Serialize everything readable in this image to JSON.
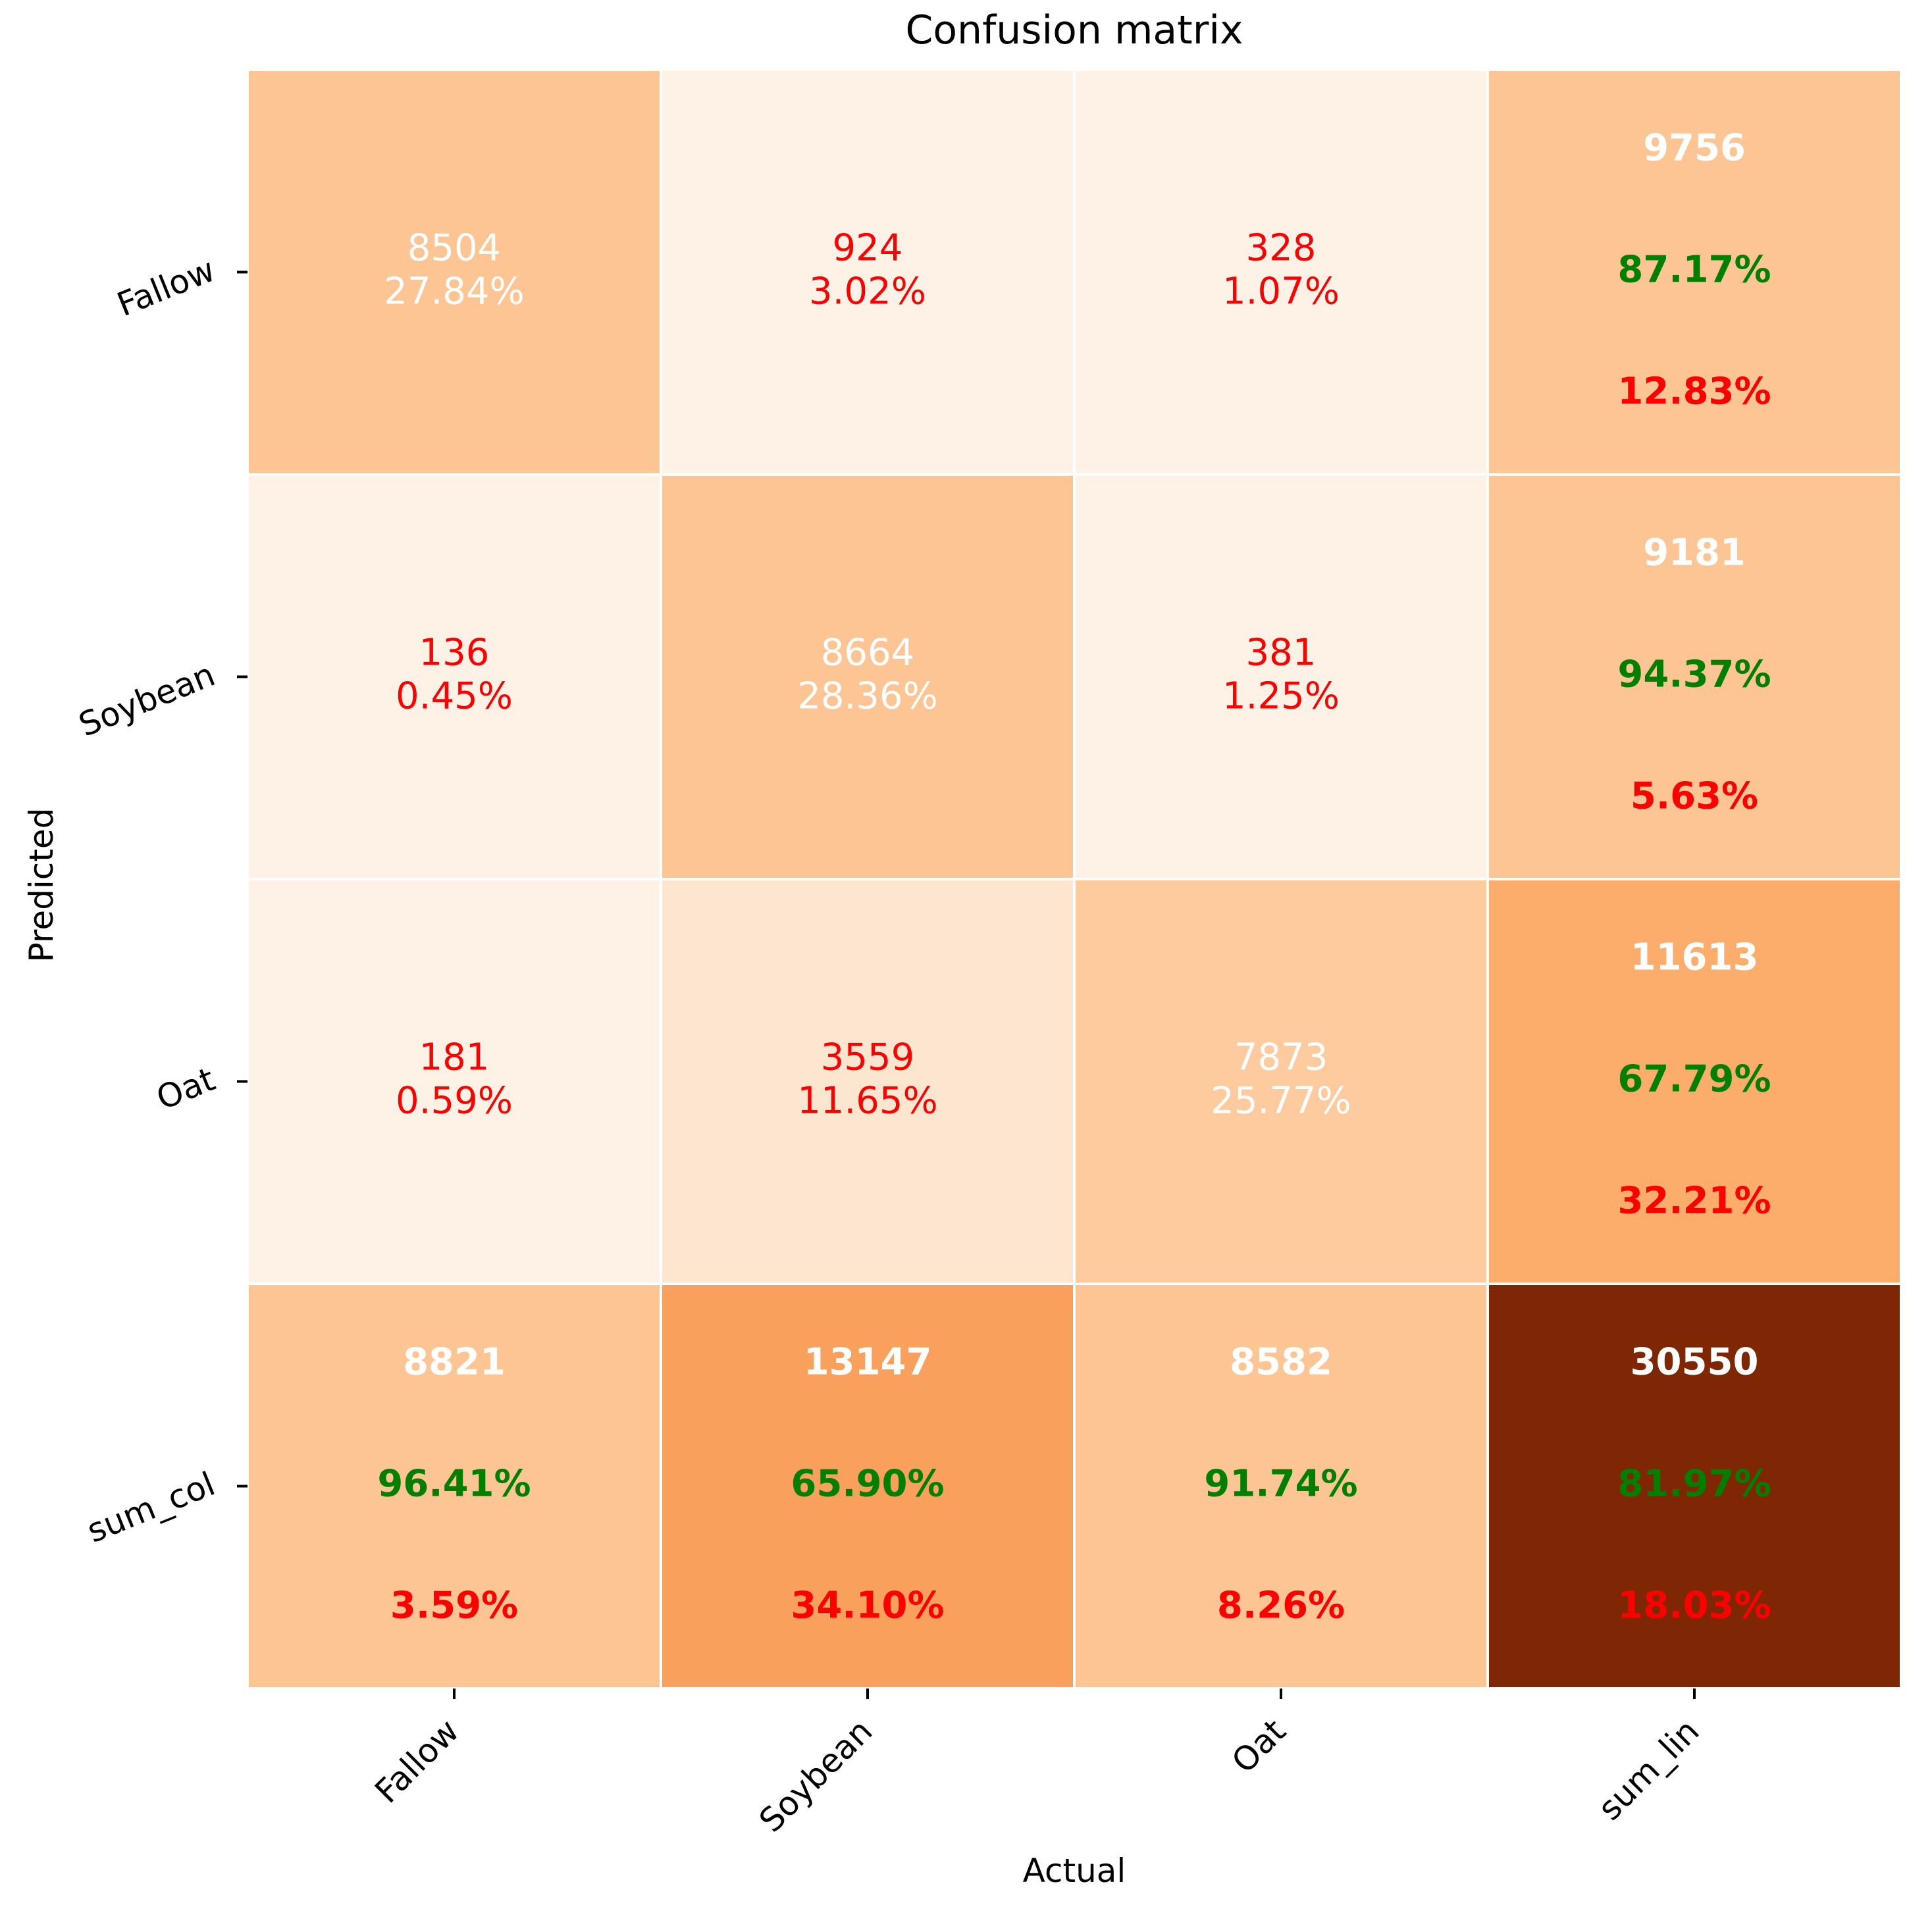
{
  "chart_data": {
    "type": "heatmap",
    "title": "Confusion matrix",
    "xlabel": "Actual",
    "ylabel": "Predicted",
    "x_tick_labels": [
      "Fallow",
      "Soybean",
      "Oat",
      "sum_lin"
    ],
    "y_tick_labels": [
      "Fallow",
      "Soybean",
      "Oat",
      "sum_col"
    ],
    "colormap": "Oranges",
    "colors": {
      "cell_very_light": "#fef2e6",
      "cell_light": "#fde6d0",
      "cell_medium_light": "#fdcb9e",
      "cell_peach": "#fdc494",
      "cell_orange_light": "#fcad6c",
      "cell_orange": "#f8a05c",
      "cell_dark": "#7f2704",
      "text_red": "#ff0000",
      "text_green": "#008000",
      "text_white": "#ffffff",
      "grid_line": "#ffffff"
    },
    "cells": [
      {
        "row": 0,
        "col": 0,
        "count": "8504",
        "percent": "27.84%",
        "kind": "diag",
        "fill": "#fdc494"
      },
      {
        "row": 0,
        "col": 1,
        "count": "924",
        "percent": "3.02%",
        "kind": "off",
        "fill": "#fef2e6"
      },
      {
        "row": 0,
        "col": 2,
        "count": "328",
        "percent": "1.07%",
        "kind": "off",
        "fill": "#fef2e6"
      },
      {
        "row": 1,
        "col": 0,
        "count": "136",
        "percent": "0.45%",
        "kind": "off",
        "fill": "#fef2e6"
      },
      {
        "row": 1,
        "col": 1,
        "count": "8664",
        "percent": "28.36%",
        "kind": "diag",
        "fill": "#fdc494"
      },
      {
        "row": 1,
        "col": 2,
        "count": "381",
        "percent": "1.25%",
        "kind": "off",
        "fill": "#fef2e6"
      },
      {
        "row": 2,
        "col": 0,
        "count": "181",
        "percent": "0.59%",
        "kind": "off",
        "fill": "#fef2e6"
      },
      {
        "row": 2,
        "col": 1,
        "count": "3559",
        "percent": "11.65%",
        "kind": "off",
        "fill": "#fde6d0"
      },
      {
        "row": 2,
        "col": 2,
        "count": "7873",
        "percent": "25.77%",
        "kind": "diag",
        "fill": "#fdcb9e"
      }
    ],
    "row_totals": [
      {
        "row": 0,
        "total": "9756",
        "correct_pct": "87.17%",
        "error_pct": "12.83%",
        "fill": "#fdc494"
      },
      {
        "row": 1,
        "total": "9181",
        "correct_pct": "94.37%",
        "error_pct": "5.63%",
        "fill": "#fdc494"
      },
      {
        "row": 2,
        "total": "11613",
        "correct_pct": "67.79%",
        "error_pct": "32.21%",
        "fill": "#fcad6c"
      }
    ],
    "col_totals": [
      {
        "col": 0,
        "total": "8821",
        "correct_pct": "96.41%",
        "error_pct": "3.59%",
        "fill": "#fdc494"
      },
      {
        "col": 1,
        "total": "13147",
        "correct_pct": "65.90%",
        "error_pct": "34.10%",
        "fill": "#f8a05c"
      },
      {
        "col": 2,
        "total": "8582",
        "correct_pct": "91.74%",
        "error_pct": "8.26%",
        "fill": "#fdc494"
      }
    ],
    "grand_total": {
      "total": "30550",
      "correct_pct": "81.97%",
      "error_pct": "18.03%",
      "fill": "#7f2704"
    }
  }
}
